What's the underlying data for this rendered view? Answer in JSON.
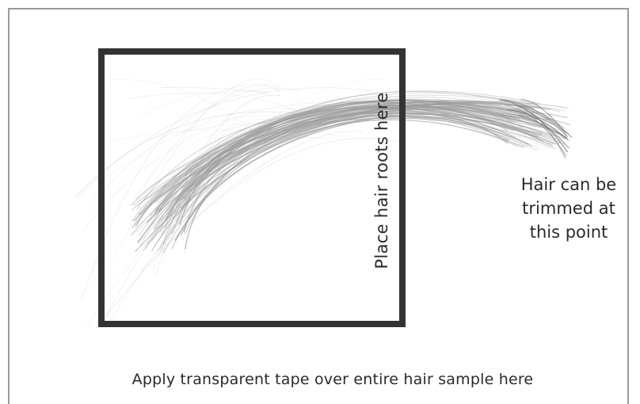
{
  "diagram": {
    "roots_label": "Place hair roots here",
    "trim_label_lines": [
      "Hair can be",
      "trimmed at",
      "this point"
    ],
    "tape_label": "Apply transparent tape over entire hair sample here",
    "colors": {
      "frame": "#9a9a9a",
      "box": "#333333",
      "hair": "#9c9c9c",
      "text": "#2a2a2a"
    }
  }
}
